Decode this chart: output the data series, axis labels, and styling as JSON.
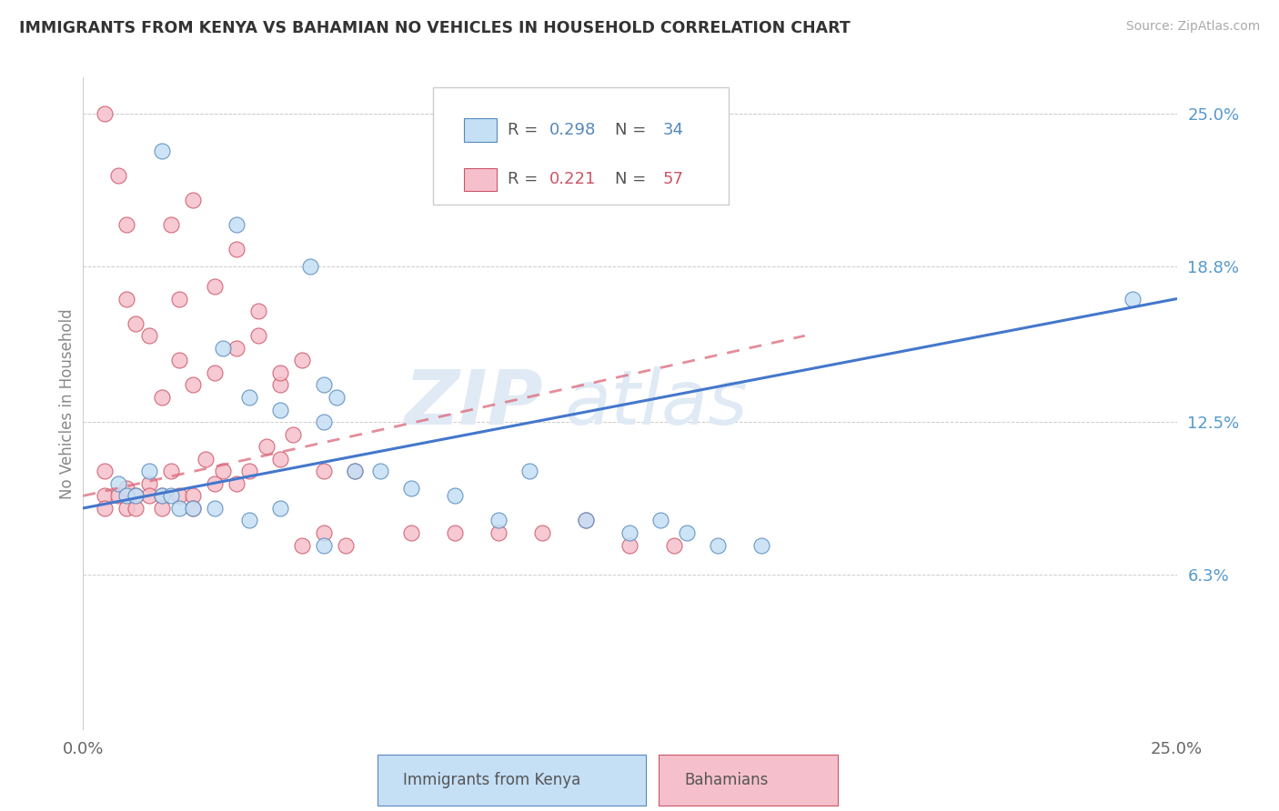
{
  "title": "IMMIGRANTS FROM KENYA VS BAHAMIAN NO VEHICLES IN HOUSEHOLD CORRELATION CHART",
  "source": "Source: ZipAtlas.com",
  "ylabel": "No Vehicles in Household",
  "y_ticks_right": [
    "6.3%",
    "12.5%",
    "18.8%",
    "25.0%"
  ],
  "y_ticks_right_vals": [
    6.3,
    12.5,
    18.8,
    25.0
  ],
  "x_range": [
    0.0,
    25.0
  ],
  "y_range": [
    0.0,
    26.5
  ],
  "blue_color": "#c5dff5",
  "blue_edge": "#5588bb",
  "pink_color": "#f5c0cc",
  "pink_edge": "#cc5566",
  "blue_line_color": "#4477cc",
  "pink_line_color": "#dd6677",
  "blue_label": "Immigrants from Kenya",
  "pink_label": "Bahamians",
  "blue_R": "0.298",
  "blue_N": "34",
  "pink_R": "0.221",
  "pink_N": "57",
  "blue_line_x0": 0.0,
  "blue_line_y0": 9.0,
  "blue_line_x1": 25.0,
  "blue_line_y1": 17.5,
  "pink_line_x0": 0.0,
  "pink_line_y0": 9.5,
  "pink_line_x1": 16.5,
  "pink_line_y1": 16.0,
  "blue_scatter_x": [
    1.8,
    3.5,
    5.2,
    3.2,
    3.8,
    5.5,
    4.5,
    5.8,
    5.5,
    6.2,
    6.8,
    7.5,
    8.5,
    9.5,
    10.2,
    11.5,
    12.5,
    13.2,
    13.8,
    14.5,
    15.5,
    0.8,
    1.0,
    1.2,
    1.5,
    1.8,
    2.0,
    2.2,
    2.5,
    3.0,
    3.8,
    4.5,
    5.5,
    24.0
  ],
  "blue_scatter_y": [
    23.5,
    20.5,
    18.8,
    15.5,
    13.5,
    14.0,
    13.0,
    13.5,
    12.5,
    10.5,
    10.5,
    9.8,
    9.5,
    8.5,
    10.5,
    8.5,
    8.0,
    8.5,
    8.0,
    7.5,
    7.5,
    10.0,
    9.5,
    9.5,
    10.5,
    9.5,
    9.5,
    9.0,
    9.0,
    9.0,
    8.5,
    9.0,
    7.5,
    17.5
  ],
  "pink_scatter_x": [
    0.5,
    0.5,
    0.5,
    0.8,
    1.0,
    1.0,
    1.2,
    1.2,
    1.5,
    1.5,
    1.8,
    1.8,
    2.0,
    2.2,
    2.5,
    2.5,
    2.8,
    3.0,
    3.2,
    3.5,
    3.8,
    4.2,
    4.5,
    4.8,
    1.8,
    2.2,
    2.5,
    3.0,
    3.5,
    4.0,
    4.5,
    5.0,
    5.5,
    6.2,
    7.5,
    8.5,
    9.5,
    10.5,
    11.5,
    12.5,
    13.5,
    0.5,
    0.8,
    1.0,
    1.0,
    1.2,
    1.5,
    2.0,
    2.2,
    2.5,
    3.0,
    3.5,
    4.0,
    4.5,
    5.0,
    5.5,
    6.0
  ],
  "pink_scatter_y": [
    10.5,
    9.5,
    9.0,
    9.5,
    9.8,
    9.0,
    9.5,
    9.0,
    10.0,
    9.5,
    9.5,
    9.0,
    10.5,
    9.5,
    9.5,
    9.0,
    11.0,
    10.0,
    10.5,
    10.0,
    10.5,
    11.5,
    11.0,
    12.0,
    13.5,
    15.0,
    14.0,
    14.5,
    15.5,
    16.0,
    14.0,
    15.0,
    10.5,
    10.5,
    8.0,
    8.0,
    8.0,
    8.0,
    8.5,
    7.5,
    7.5,
    25.0,
    22.5,
    20.5,
    17.5,
    16.5,
    16.0,
    20.5,
    17.5,
    21.5,
    18.0,
    19.5,
    17.0,
    14.5,
    7.5,
    8.0,
    7.5
  ]
}
